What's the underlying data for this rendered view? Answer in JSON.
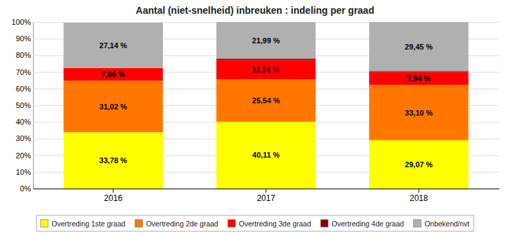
{
  "chart_data": {
    "type": "bar",
    "title": "Aantal (niet-snelheid) inbreuken : indeling per graad",
    "stacked": true,
    "categories": [
      "2016",
      "2017",
      "2018"
    ],
    "series": [
      {
        "name": "Overtreding 1ste graad",
        "color": "#FFFF00",
        "values": [
          33.78,
          40.11,
          29.07
        ],
        "value_labels": [
          "33,78 %",
          "40,11 %",
          "29,07 %"
        ]
      },
      {
        "name": "Overtreding 2de graad",
        "color": "#FF7700",
        "values": [
          31.02,
          25.54,
          33.1
        ],
        "value_labels": [
          "31,02 %",
          "25,54 %",
          "33,10 %"
        ]
      },
      {
        "name": "Overtreding 3de graad",
        "color": "#FF0000",
        "values": [
          7.66,
          11.51,
          7.94
        ],
        "value_labels": [
          "7,66 %",
          "11,51 %",
          "7,94 %"
        ]
      },
      {
        "name": "Overtreding 4de graad",
        "color": "#8B0000",
        "values": [
          0.0,
          0.85,
          0.44
        ]
      },
      {
        "name": "Onbekend/nvt",
        "color": "#B0B0B0",
        "values": [
          27.14,
          21.99,
          29.45
        ],
        "value_labels": [
          "27,14 %",
          "21,99 %",
          "29,45 %"
        ]
      }
    ],
    "ylim": [
      0,
      100
    ],
    "yticks": [
      {
        "value": 0,
        "label": "0%"
      },
      {
        "value": 10,
        "label": "10%"
      },
      {
        "value": 20,
        "label": "20%"
      },
      {
        "value": 30,
        "label": "30%"
      },
      {
        "value": 40,
        "label": "40%"
      },
      {
        "value": 50,
        "label": "50%"
      },
      {
        "value": 60,
        "label": "60%"
      },
      {
        "value": 70,
        "label": "70%"
      },
      {
        "value": 80,
        "label": "80%"
      },
      {
        "value": 90,
        "label": "90%"
      },
      {
        "value": 100,
        "label": "100%"
      }
    ],
    "grid": true,
    "legend": "bottom"
  }
}
